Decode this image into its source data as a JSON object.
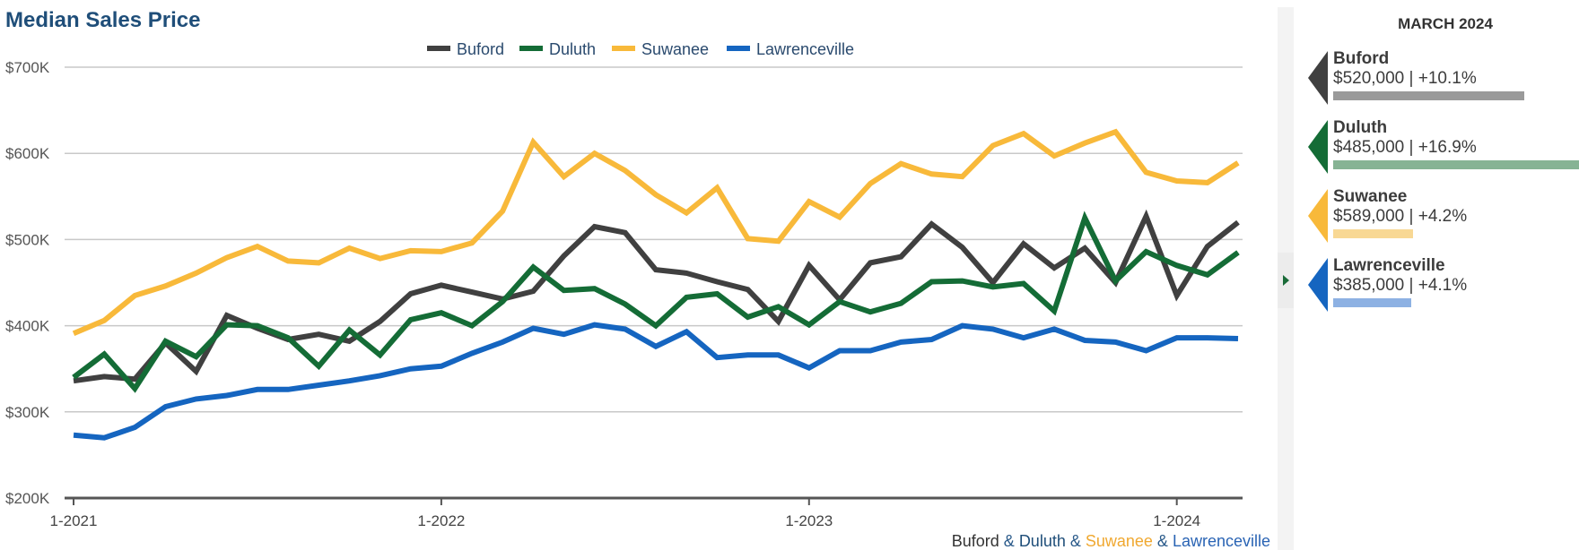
{
  "chart_data": {
    "type": "line",
    "title": "Median Sales Price",
    "y_unit": "USD",
    "ylim": [
      200000,
      700000
    ],
    "y_ticks": [
      200000,
      300000,
      400000,
      500000,
      600000,
      700000
    ],
    "y_tick_labels": [
      "$200K",
      "$300K",
      "$400K",
      "$500K",
      "$600K",
      "$700K"
    ],
    "x": [
      "2021-01",
      "2021-02",
      "2021-03",
      "2021-04",
      "2021-05",
      "2021-06",
      "2021-07",
      "2021-08",
      "2021-09",
      "2021-10",
      "2021-11",
      "2021-12",
      "2022-01",
      "2022-02",
      "2022-03",
      "2022-04",
      "2022-05",
      "2022-06",
      "2022-07",
      "2022-08",
      "2022-09",
      "2022-10",
      "2022-11",
      "2022-12",
      "2023-01",
      "2023-02",
      "2023-03",
      "2023-04",
      "2023-05",
      "2023-06",
      "2023-07",
      "2023-08",
      "2023-09",
      "2023-10",
      "2023-11",
      "2023-12",
      "2024-01",
      "2024-02",
      "2024-03"
    ],
    "x_ticks": [
      "2021-01",
      "2022-01",
      "2023-01",
      "2024-01"
    ],
    "x_tick_labels": [
      "1-2021",
      "1-2022",
      "1-2023",
      "1-2024"
    ],
    "grid": "horizontal",
    "legend_position": "top-center",
    "series": [
      {
        "name": "Buford",
        "color": "#404040",
        "values": [
          336000,
          341000,
          338000,
          380000,
          347000,
          412000,
          397000,
          384000,
          390000,
          382000,
          405000,
          437000,
          447000,
          439000,
          431000,
          440000,
          481000,
          515000,
          508000,
          465000,
          461000,
          451000,
          442000,
          405000,
          470000,
          430000,
          473000,
          480000,
          518000,
          491000,
          450000,
          495000,
          467000,
          490000,
          450000,
          527000,
          435000,
          492000,
          520000
        ]
      },
      {
        "name": "Duluth",
        "color": "#146c36",
        "values": [
          340000,
          367000,
          327000,
          382000,
          364000,
          401000,
          400000,
          386000,
          353000,
          395000,
          366000,
          407000,
          415000,
          400000,
          428000,
          468000,
          441000,
          443000,
          425000,
          400000,
          433000,
          437000,
          410000,
          422000,
          401000,
          428000,
          416000,
          426000,
          451000,
          452000,
          445000,
          449000,
          417000,
          525000,
          452000,
          486000,
          470000,
          459000,
          485000
        ]
      },
      {
        "name": "Suwanee",
        "color": "#f8b93a",
        "values": [
          391000,
          406000,
          435000,
          446000,
          461000,
          479000,
          492000,
          475000,
          473000,
          490000,
          478000,
          487000,
          486000,
          496000,
          533000,
          613000,
          573000,
          600000,
          580000,
          552000,
          531000,
          560000,
          501000,
          498000,
          544000,
          526000,
          565000,
          588000,
          576000,
          573000,
          609000,
          623000,
          597000,
          612000,
          625000,
          578000,
          568000,
          566000,
          589000
        ]
      },
      {
        "name": "Lawrenceville",
        "color": "#1565c0",
        "values": [
          273000,
          270000,
          282000,
          306000,
          315000,
          319000,
          326000,
          326000,
          331000,
          336000,
          342000,
          350000,
          353000,
          368000,
          381000,
          397000,
          390000,
          401000,
          396000,
          376000,
          393000,
          363000,
          366000,
          366000,
          351000,
          371000,
          371000,
          381000,
          384000,
          400000,
          396000,
          386000,
          396000,
          383000,
          381000,
          371000,
          386000,
          386000,
          385000
        ]
      }
    ]
  },
  "footer": {
    "parts": [
      {
        "text": "Buford",
        "color": "#333333"
      },
      {
        "text": " & ",
        "color": "#2a5a8a"
      },
      {
        "text": "Duluth",
        "color": "#1f4e79"
      },
      {
        "text": " & ",
        "color": "#2a5a8a"
      },
      {
        "text": "Suwanee",
        "color": "#f0a830"
      },
      {
        "text": " & ",
        "color": "#2a5a8a"
      },
      {
        "text": "Lawrenceville",
        "color": "#2a64b4"
      }
    ]
  },
  "side_panel": {
    "heading": "MARCH 2024",
    "cards": [
      {
        "name": "Buford",
        "value_text": "$520,000 | +10.1%",
        "color": "#404040",
        "bar_color": "#9a9a9a",
        "bar_fraction": 0.101
      },
      {
        "name": "Duluth",
        "value_text": "$485,000 | +16.9%",
        "color": "#146c36",
        "bar_color": "#86b394",
        "bar_fraction": 0.169
      },
      {
        "name": "Suwanee",
        "value_text": "$589,000 | +4.2%",
        "color": "#f8b93a",
        "bar_color": "#f8d894",
        "bar_fraction": 0.042
      },
      {
        "name": "Lawrenceville",
        "value_text": "$385,000 | +4.1%",
        "color": "#1565c0",
        "bar_color": "#8db1e3",
        "bar_fraction": 0.041
      }
    ]
  }
}
